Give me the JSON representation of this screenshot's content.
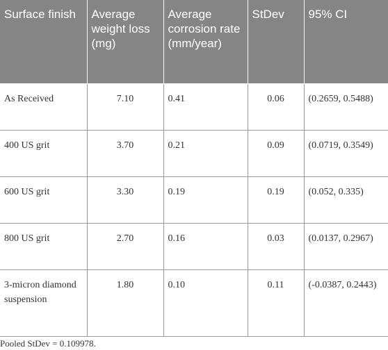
{
  "table": {
    "headers": [
      "Surface finish",
      "Average weight loss (mg)",
      "Average corrosion rate (mm/year)",
      "StDev",
      "95% CI"
    ],
    "rows": [
      {
        "surface_finish": "As Received",
        "avg_weight_loss": "7.10",
        "avg_corrosion_rate": "0.41",
        "stdev": "0.06",
        "ci": "(0.2659, 0.5488)"
      },
      {
        "surface_finish": "400 US grit",
        "avg_weight_loss": "3.70",
        "avg_corrosion_rate": "0.21",
        "stdev": "0.09",
        "ci": "(0.0719, 0.3549)"
      },
      {
        "surface_finish": "600 US grit",
        "avg_weight_loss": "3.30",
        "avg_corrosion_rate": "0.19",
        "stdev": "0.19",
        "ci": "(0.052, 0.335)"
      },
      {
        "surface_finish": "800 US grit",
        "avg_weight_loss": "2.70",
        "avg_corrosion_rate": "0.16",
        "stdev": "0.03",
        "ci": "(0.0137, 0.2967)"
      },
      {
        "surface_finish": "3-micron diamond suspension",
        "avg_weight_loss": "1.80",
        "avg_corrosion_rate": "0.10",
        "stdev": "0.11",
        "ci": "(-0.0387, 0.2443)"
      }
    ],
    "footnote": "Pooled StDev = 0.109978."
  },
  "colors": {
    "header_background": "#858585",
    "header_text": "#ffffff",
    "body_text": "#333333",
    "rule": "#9a9a9a"
  }
}
